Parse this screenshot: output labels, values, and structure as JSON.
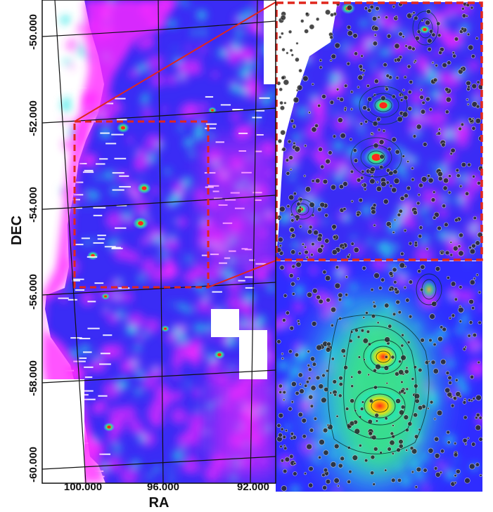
{
  "axes": {
    "xlabel": "RA",
    "ylabel": "DEC",
    "x_ticks": [
      "100.000",
      "96.000",
      "92.000"
    ],
    "y_ticks": [
      "-50.000",
      "-52.000",
      "-54.000",
      "-56.000",
      "-58.000",
      "-60.000"
    ]
  },
  "colors": {
    "background_map": "#3a2cf5",
    "low_emission": "#ff2bff",
    "medium_emission": "#27e6e6",
    "high_emission": "#ffe100",
    "peak_emission": "#ff2a1a",
    "zoom_box": "#e0261d",
    "zoom_lines": "#e0261d",
    "grid": "#111111"
  }
}
